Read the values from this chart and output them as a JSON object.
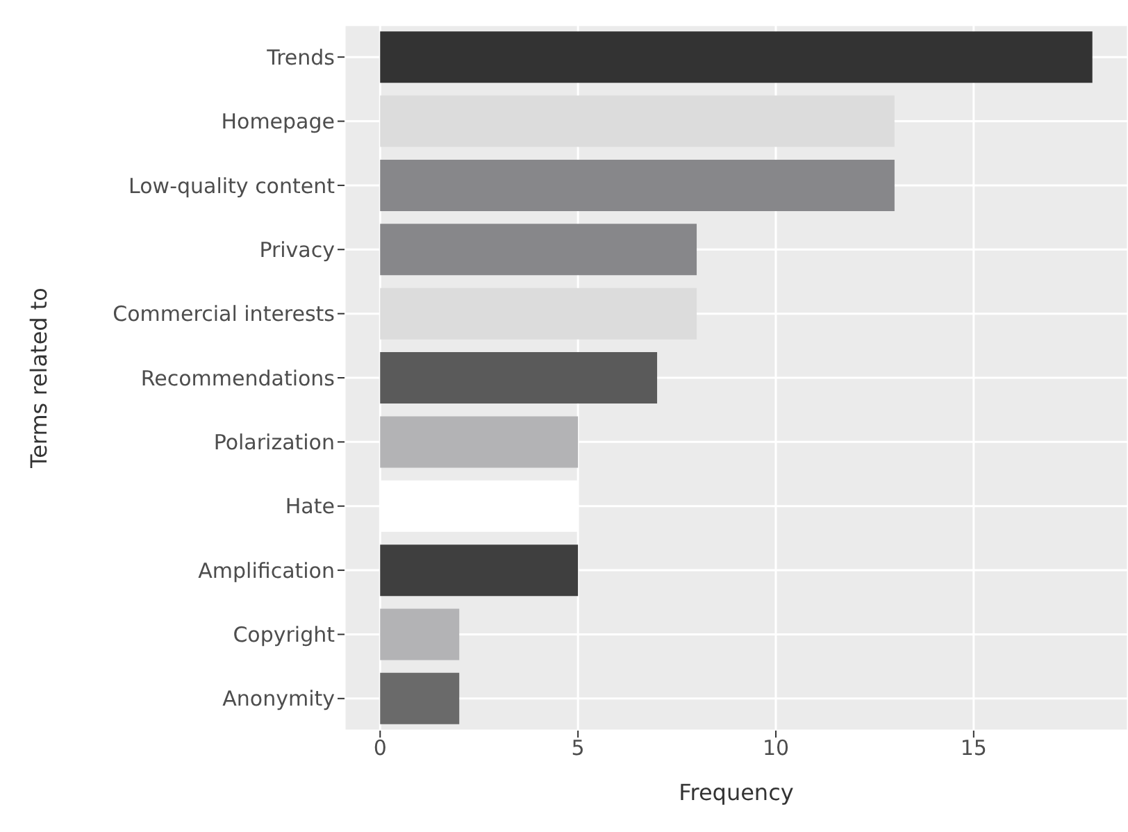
{
  "chart_data": {
    "type": "bar",
    "orientation": "horizontal",
    "xlabel": "Frequency",
    "ylabel": "Terms related to",
    "categories": [
      "Trends",
      "Homepage",
      "Low-quality content",
      "Privacy",
      "Commercial interests",
      "Recommendations",
      "Polarization",
      "Hate",
      "Amplification",
      "Copyright",
      "Anonymity"
    ],
    "values": [
      18,
      13,
      13,
      8,
      8,
      7,
      5,
      5,
      5,
      2,
      2
    ],
    "colors": [
      "#333333",
      "#dcdcdc",
      "#87878a",
      "#87878a",
      "#dcdcdc",
      "#5a5a5a",
      "#b3b3b5",
      "#ffffff",
      "#3f3f3f",
      "#b3b3b5",
      "#6a6a6a"
    ],
    "xlim": [
      -0.9,
      18.9
    ],
    "xticks": [
      0,
      5,
      10,
      15
    ],
    "grid": true
  }
}
